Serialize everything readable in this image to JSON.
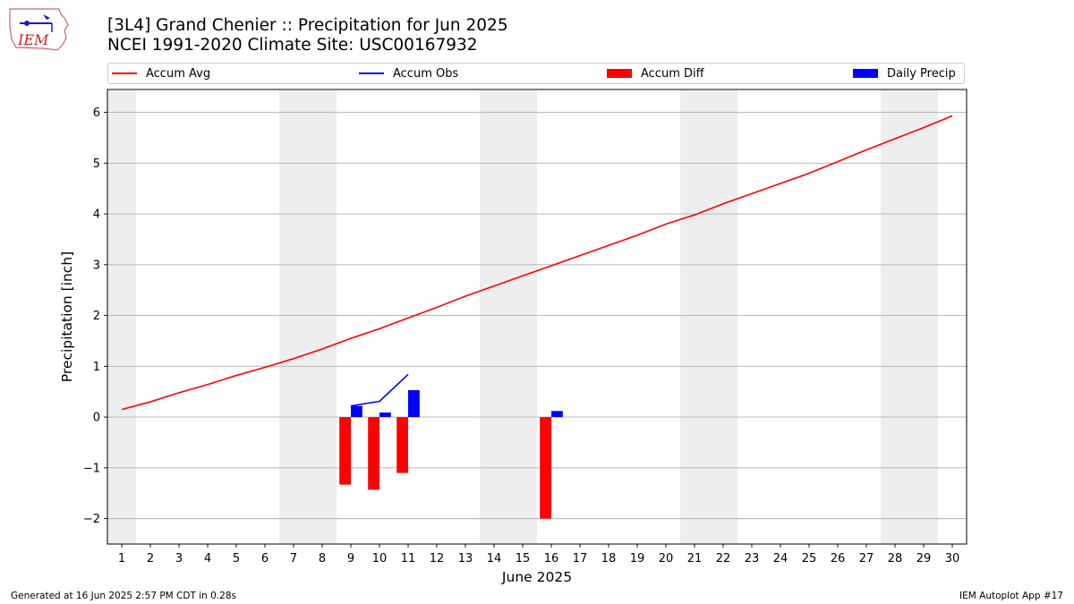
{
  "header": {
    "title_line1": "[3L4] Grand Chenier :: Precipitation for Jun 2025",
    "title_line2": "NCEI 1991-2020 Climate Site: USC00167932"
  },
  "logo": {
    "text": "IEM",
    "color": "#cc2222"
  },
  "legend": {
    "accum_avg": "Accum Avg",
    "accum_obs": "Accum Obs",
    "accum_diff": "Accum Diff",
    "daily_precip": "Daily Precip"
  },
  "footer": {
    "generated": "Generated at 16 Jun 2025 2:57 PM CDT in 0.28s",
    "app": "IEM Autoplot App #17"
  },
  "chart_data": {
    "type": "bar",
    "xlabel": "June 2025",
    "ylabel": "Precipitation [inch]",
    "xlim": [
      0.5,
      30.5
    ],
    "ylim": [
      -2.5,
      6.45
    ],
    "yticks": [
      -2,
      -1,
      0,
      1,
      2,
      3,
      4,
      5,
      6
    ],
    "x": [
      1,
      2,
      3,
      4,
      5,
      6,
      7,
      8,
      9,
      10,
      11,
      12,
      13,
      14,
      15,
      16,
      17,
      18,
      19,
      20,
      21,
      22,
      23,
      24,
      25,
      26,
      27,
      28,
      29,
      30
    ],
    "weekend_days": [
      1,
      7,
      8,
      14,
      15,
      21,
      22,
      28,
      29
    ],
    "grid": "horizontal",
    "colors": {
      "accum_avg": "#ff0000",
      "accum_obs": "#0000ff",
      "accum_diff": "#ff0000",
      "daily_precip": "#0000ff",
      "weekend_band": "#eeeeee",
      "grid": "#b0b0b0"
    },
    "series": [
      {
        "name": "Accum Avg",
        "type": "line",
        "values": [
          0.15,
          0.3,
          0.48,
          0.64,
          0.82,
          0.98,
          1.15,
          1.34,
          1.55,
          1.74,
          1.95,
          2.16,
          2.38,
          2.58,
          2.78,
          2.98,
          3.18,
          3.38,
          3.58,
          3.8,
          3.98,
          4.2,
          4.4,
          4.6,
          4.8,
          5.03,
          5.26,
          5.48,
          5.7,
          5.93
        ]
      },
      {
        "name": "Accum Obs",
        "type": "line",
        "x": [
          9,
          10,
          11
        ],
        "values": [
          0.22,
          0.31,
          0.84
        ]
      },
      {
        "name": "Accum Diff",
        "type": "bar",
        "x": [
          9,
          10,
          11,
          16
        ],
        "values": [
          -1.33,
          -1.43,
          -1.1,
          -2.0
        ]
      },
      {
        "name": "Daily Precip",
        "type": "bar",
        "x": [
          9,
          10,
          11,
          16
        ],
        "values": [
          0.22,
          0.09,
          0.53,
          0.12
        ]
      }
    ]
  }
}
